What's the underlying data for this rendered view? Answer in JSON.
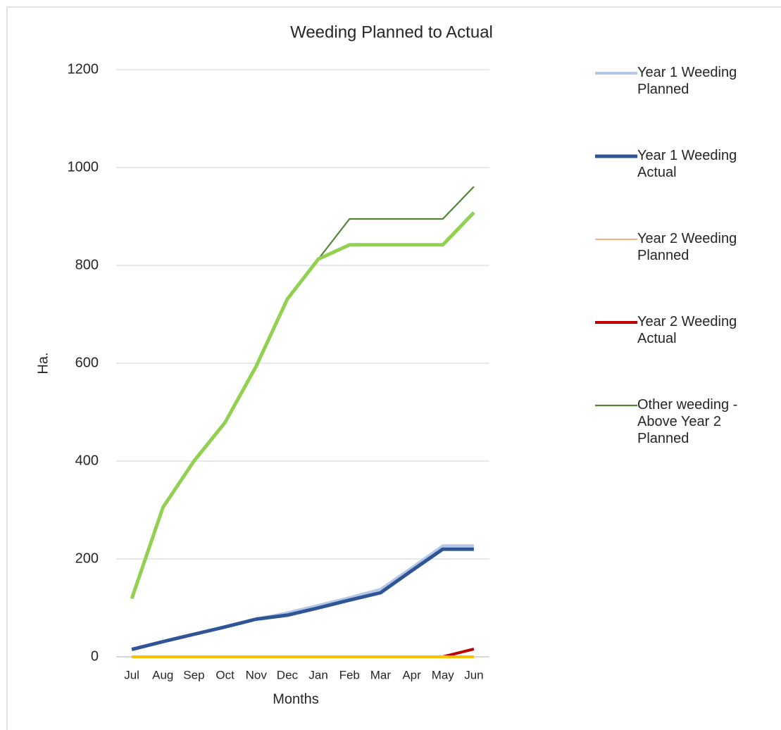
{
  "chart_data": {
    "type": "line",
    "title": "Weeding Planned to Actual",
    "x_label": "Months",
    "y_label": "Ha.",
    "categories": [
      "Jul",
      "Aug",
      "Sep",
      "Oct",
      "Nov",
      "Dec",
      "Jan",
      "Feb",
      "Mar",
      "Apr",
      "May",
      "Jun"
    ],
    "ylim": [
      0,
      1200
    ],
    "yticks": [
      0,
      200,
      400,
      600,
      800,
      1000,
      1200
    ],
    "grid": true,
    "legend": "right",
    "series": [
      {
        "name": "Year 1 Weeding Planned",
        "color": "#b4c7e7",
        "values": [
          15,
          31,
          46,
          61,
          77,
          90,
          105,
          121,
          138,
          182,
          227,
          227
        ]
      },
      {
        "name": "Year 1 Weeding Actual",
        "color": "#2f5597",
        "values": [
          15,
          31,
          46,
          61,
          77,
          85,
          100,
          116,
          131,
          176,
          220,
          220
        ]
      },
      {
        "name": "Year 2 Weeding Planned",
        "color": "#f4b183",
        "values": [
          0,
          0,
          0,
          0,
          0,
          0,
          0,
          0,
          0,
          0,
          0,
          0
        ]
      },
      {
        "name": "Year 2 Weeding Actual",
        "color": "#c00000",
        "values": [
          0,
          0,
          0,
          0,
          0,
          0,
          0,
          0,
          0,
          0,
          0,
          16
        ]
      },
      {
        "name": "Other weeding - Above Year 2 Planned",
        "color": "#548235",
        "values": [
          119,
          305,
          400,
          479,
          594,
          731,
          813,
          895,
          895,
          895,
          895,
          961
        ]
      },
      {
        "color": "#92d050",
        "values": [
          119,
          305,
          400,
          479,
          594,
          731,
          813,
          842,
          842,
          842,
          842,
          908
        ]
      },
      {
        "color": "#ffc000",
        "values": [
          0,
          0,
          0,
          0,
          0,
          0,
          0,
          0,
          0,
          0,
          0,
          0
        ]
      }
    ]
  }
}
